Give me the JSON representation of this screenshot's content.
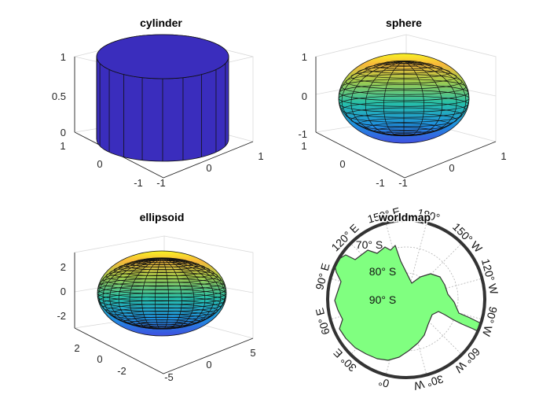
{
  "chart_data": [
    {
      "type": "surface",
      "title": "cylinder",
      "z_ticks": [
        "0",
        "0.5",
        "1"
      ],
      "y_ticks": [
        "1",
        "0",
        "-1"
      ],
      "x_ticks": [
        "-1",
        "0",
        "1"
      ],
      "zlim": [
        0,
        1
      ],
      "ylim": [
        -1,
        1
      ],
      "xlim": [
        -1,
        1
      ],
      "facecolor": "#3a2dbd",
      "vertical_facets": 20
    },
    {
      "type": "surface",
      "title": "sphere",
      "z_ticks": [
        "-1",
        "0",
        "1"
      ],
      "y_ticks": [
        "1",
        "0",
        "-1"
      ],
      "x_ticks": [
        "-1",
        "0",
        "1"
      ],
      "zlim": [
        -1,
        1
      ],
      "ylim": [
        -1,
        1
      ],
      "xlim": [
        -1,
        1
      ],
      "colormap": "parula",
      "latitude_bands": 20,
      "longitude_lines": 20
    },
    {
      "type": "surface",
      "title": "ellipsoid",
      "z_ticks": [
        "2",
        "0",
        "-2"
      ],
      "y_ticks": [
        "2",
        "0",
        "-2"
      ],
      "x_ticks": [
        "-5",
        "0",
        "5"
      ],
      "colormap": "parula",
      "latitude_bands": 30,
      "longitude_lines": 30
    },
    {
      "type": "map",
      "title": "worldmap",
      "projection": "polar",
      "lat_labels": [
        "70° S",
        "80° S",
        "90° S"
      ],
      "lon_labels": [
        "150° E",
        "180°",
        "150° W",
        "120° W",
        "90° W",
        "60° W",
        "30° W",
        "0°",
        "30° E",
        "60° E",
        "90° E",
        "120° E"
      ],
      "land_color": "#80ff80",
      "frame_color": "#333333"
    }
  ]
}
